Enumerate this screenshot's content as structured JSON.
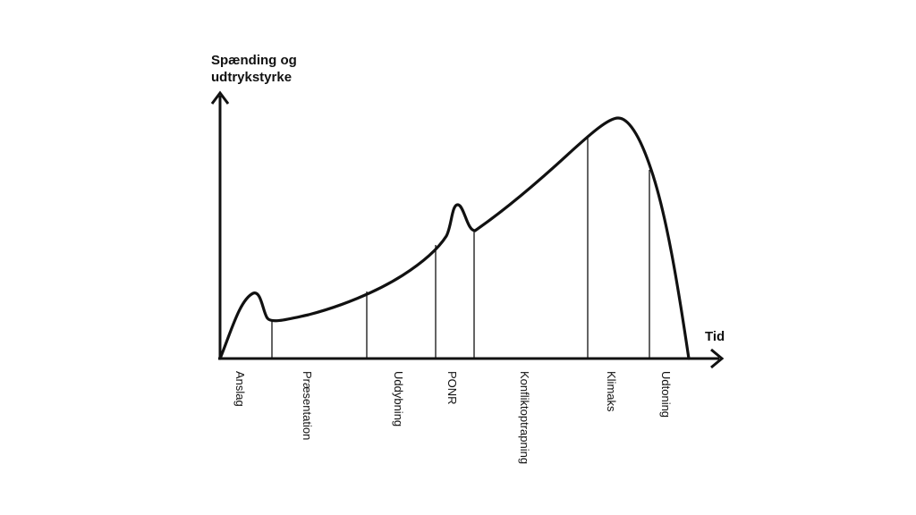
{
  "diagram": {
    "y_axis_label_line1": "Spænding og",
    "y_axis_label_line2": "udtrykstyrke",
    "x_axis_label": "Tid",
    "phases": [
      {
        "label": "Anslag"
      },
      {
        "label": "Præsentation"
      },
      {
        "label": "Uddybning"
      },
      {
        "label": "PONR"
      },
      {
        "label": "Konfliktoptrapning"
      },
      {
        "label": "Klimaks"
      },
      {
        "label": "Udtoning"
      }
    ],
    "colors": {
      "line": "#111111",
      "background": "#ffffff"
    }
  }
}
